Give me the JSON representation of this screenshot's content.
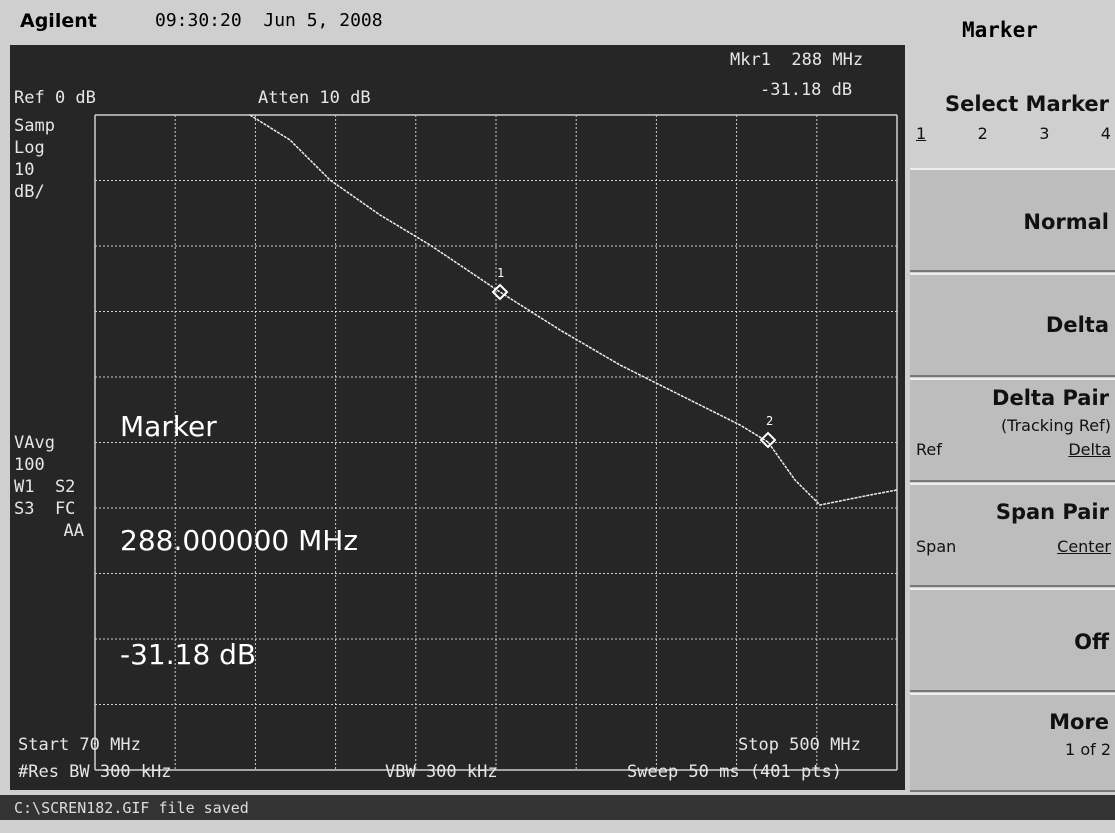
{
  "header": {
    "brand": "Agilent",
    "timestamp": "09:30:20  Jun 5, 2008",
    "menu_title": "Marker"
  },
  "screen": {
    "marker_readout": {
      "label": "Mkr1  288 MHz",
      "value": "-31.18 dB"
    },
    "ref": "Ref 0 dB",
    "atten": "Atten 10 dB",
    "left_labels": [
      "Samp",
      "Log",
      "10",
      "dB/"
    ],
    "avg_labels": [
      "VAvg",
      "100",
      "W1  S2",
      "S3  FC",
      "AA"
    ],
    "marker_box": {
      "title": "Marker",
      "frequency": "288.000000 MHz",
      "level": "-31.18 dB"
    },
    "trace_markers": [
      "1",
      "2"
    ],
    "footer": {
      "start": "Start 70 MHz",
      "stop": "Stop 500 MHz",
      "rbw": "#Res BW 300 kHz",
      "vbw": "VBW 300 kHz",
      "sweep": "Sweep 50 ms (401 pts)"
    }
  },
  "softkeys": [
    {
      "title": "Select Marker",
      "options": [
        "1",
        "2",
        "3",
        "4"
      ]
    },
    {
      "title": "Normal"
    },
    {
      "title": "Delta"
    },
    {
      "title": "Delta Pair",
      "subtitle": "(Tracking Ref)",
      "left": "Ref",
      "right": "Delta"
    },
    {
      "title": "Span Pair",
      "left": "Span",
      "right": "Center"
    },
    {
      "title": "Off"
    },
    {
      "title": "More",
      "subtitle": "1 of 2"
    }
  ],
  "status": "C:\\SCREN182.GIF file saved"
}
